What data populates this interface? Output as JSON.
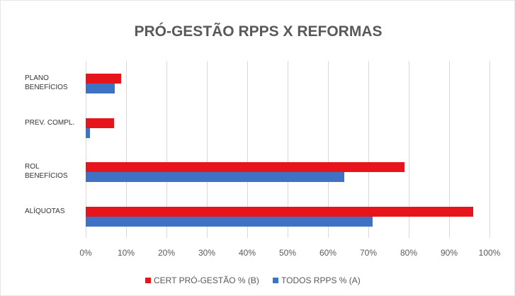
{
  "chart_data": {
    "type": "hbar",
    "title": "PRÓ-GESTÃO RPPS X REFORMAS",
    "categories": [
      "PLANO BENEFÍCIOS",
      "PREV. COMPL.",
      "ROL BENEFÍCIOS",
      "ALÍQUOTAS"
    ],
    "series": [
      {
        "name": "CERT PRÓ-GESTÃO % (B)",
        "color": "#e8141c",
        "values": [
          8.8,
          7,
          79,
          96
        ]
      },
      {
        "name": "TODOS RPPS % (A)",
        "color": "#3e72c4",
        "values": [
          7.2,
          1,
          64,
          71
        ]
      }
    ],
    "xlim": [
      0,
      100
    ],
    "xticks": [
      {
        "value": 0,
        "label": "0%"
      },
      {
        "value": 10,
        "label": "10%"
      },
      {
        "value": 20,
        "label": "20%"
      },
      {
        "value": 30,
        "label": "30%"
      },
      {
        "value": 40,
        "label": "40%"
      },
      {
        "value": 50,
        "label": "50%"
      },
      {
        "value": 60,
        "label": "60%"
      },
      {
        "value": 70,
        "label": "70%"
      },
      {
        "value": 80,
        "label": "80%"
      },
      {
        "value": 90,
        "label": "90%"
      },
      {
        "value": 100,
        "label": "100%"
      }
    ],
    "grid": true
  }
}
